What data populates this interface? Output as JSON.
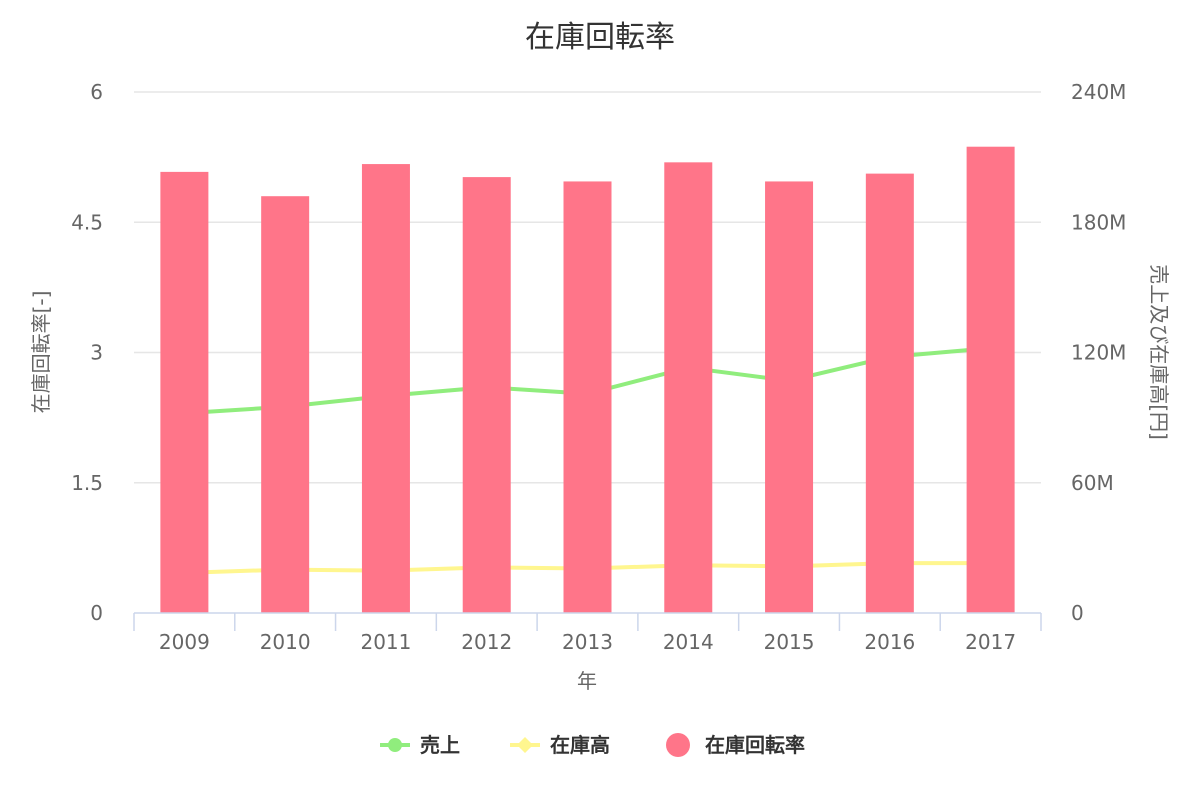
{
  "chart_data": {
    "type": "bar",
    "title": "在庫回転率",
    "xlabel": "年",
    "ylabel_left": "在庫回転率[-]",
    "ylabel_right": "売上及び在庫高[円]",
    "categories": [
      "2009",
      "2010",
      "2011",
      "2012",
      "2013",
      "2014",
      "2015",
      "2016",
      "2017"
    ],
    "left_axis": {
      "min": 0,
      "max": 6,
      "ticks": [
        0,
        1.5,
        3,
        4.5,
        6
      ],
      "tick_labels": [
        "0",
        "1.5",
        "3",
        "4.5",
        "6"
      ]
    },
    "right_axis": {
      "min": 0,
      "max": 240000000,
      "ticks": [
        0,
        60000000,
        120000000,
        180000000,
        240000000
      ],
      "tick_labels": [
        "0",
        "60M",
        "120M",
        "180M",
        "240M"
      ]
    },
    "series": [
      {
        "name": "売上",
        "kind": "line",
        "axis": "right",
        "color": "#90ed7d",
        "marker": "circle",
        "values": [
          92000000,
          95000000,
          100000000,
          104000000,
          101000000,
          113000000,
          107000000,
          118000000,
          122000000
        ]
      },
      {
        "name": "在庫高",
        "kind": "line",
        "axis": "right",
        "color": "#fff68f",
        "marker": "diamond",
        "values": [
          18500000,
          20000000,
          19500000,
          21000000,
          20500000,
          22000000,
          21500000,
          23000000,
          23000000
        ]
      },
      {
        "name": "在庫回転率",
        "kind": "bar",
        "axis": "left",
        "color": "#ff7589",
        "values": [
          5.08,
          4.8,
          5.17,
          5.02,
          4.97,
          5.19,
          4.97,
          5.06,
          5.37
        ]
      }
    ],
    "grid": true,
    "legend_position": "bottom-center"
  }
}
